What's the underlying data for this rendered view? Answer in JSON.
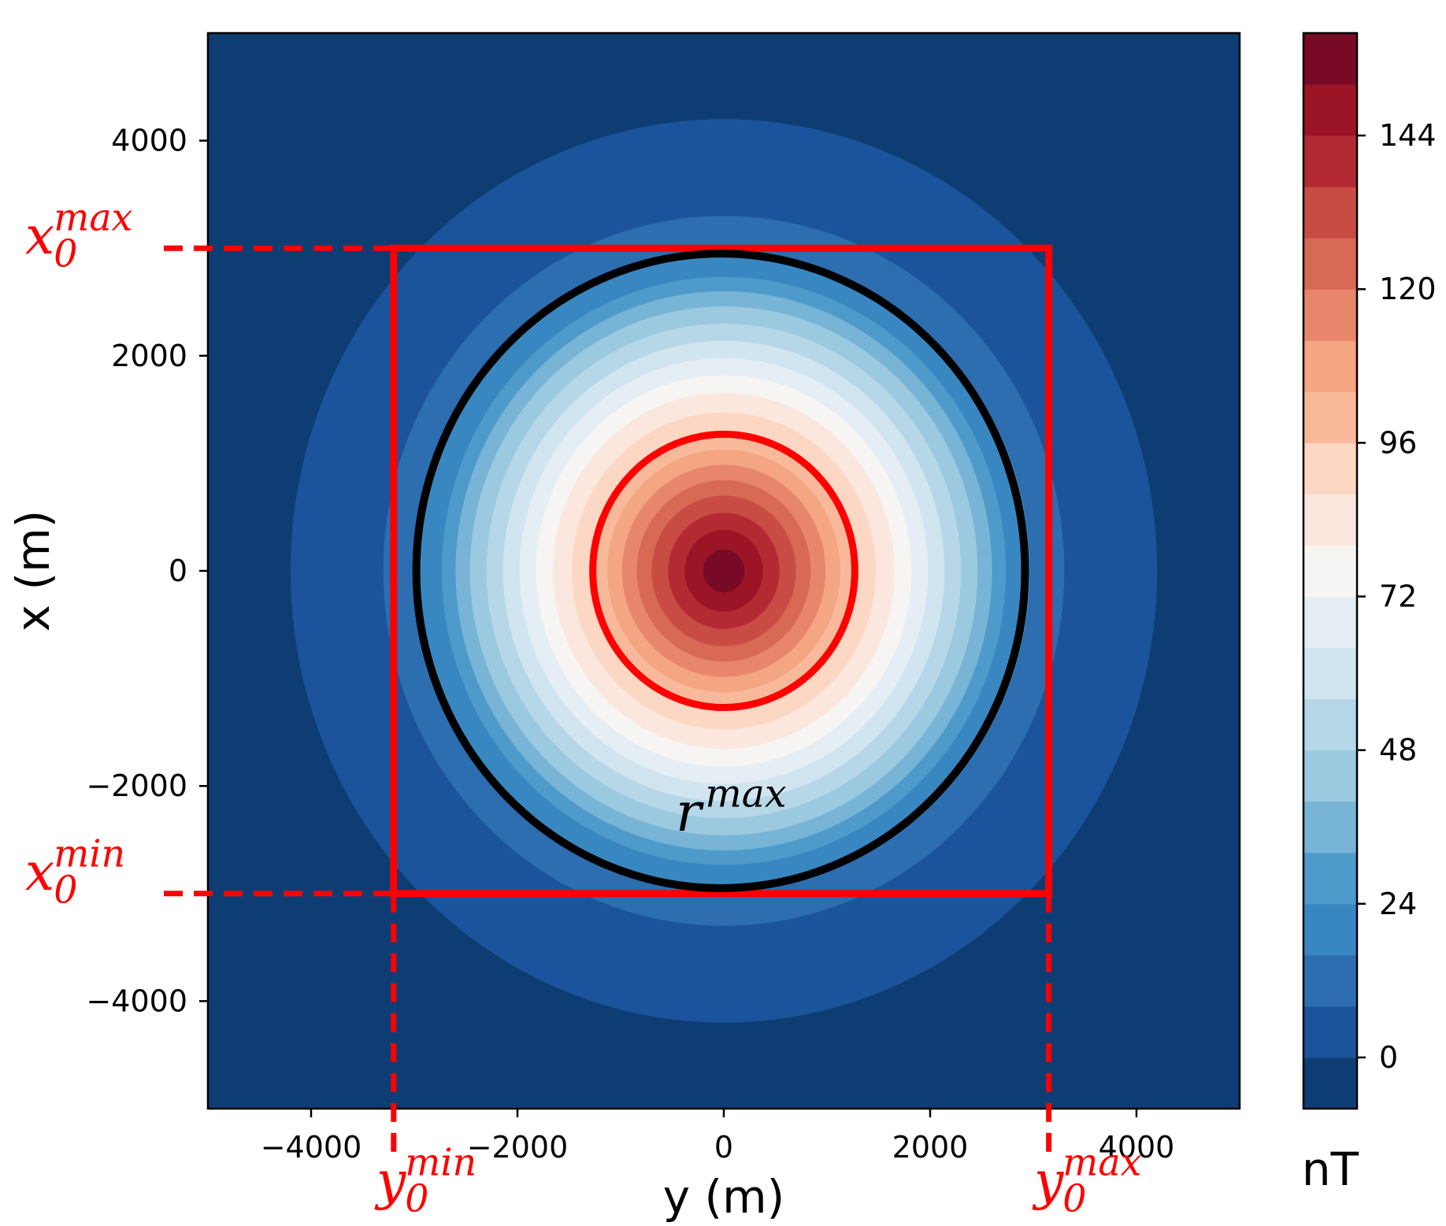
{
  "chart_data": {
    "type": "heatmap",
    "subtype": "filled-contour",
    "title": "",
    "xlabel": "y (m)",
    "ylabel": "x (m)",
    "xlim": [
      -5000,
      5000
    ],
    "ylim": [
      -5000,
      5000
    ],
    "xticks": [
      -4000,
      -2000,
      0,
      2000,
      4000
    ],
    "yticks": [
      -4000,
      -2000,
      0,
      2000,
      4000
    ],
    "xtick_labels": [
      "−4000",
      "−2000",
      "0",
      "2000",
      "4000"
    ],
    "ytick_labels": [
      "−4000",
      "−2000",
      "0",
      "2000",
      "4000"
    ],
    "grid": false,
    "colormap": "RdBu_r",
    "colorbar": {
      "label": "nT",
      "min": -8,
      "max": 160,
      "levels": [
        -8,
        0,
        8,
        16,
        24,
        32,
        40,
        48,
        56,
        64,
        72,
        80,
        88,
        96,
        104,
        112,
        120,
        128,
        136,
        144,
        152,
        160
      ],
      "ticks": [
        0,
        24,
        48,
        72,
        96,
        120,
        144
      ],
      "tick_labels": [
        "0",
        "24",
        "48",
        "72",
        "96",
        "120",
        "144"
      ],
      "colors": [
        "#0e3d73",
        "#1b549c",
        "#2c6eb0",
        "#3987c0",
        "#4e9bcb",
        "#78b4d6",
        "#9ac9e0",
        "#b6d7e8",
        "#d0e5f0",
        "#e4eef4",
        "#f6f5f4",
        "#fbe7dd",
        "#fcd7c3",
        "#f8b99b",
        "#f4a582",
        "#e8866b",
        "#d86955",
        "#c84c44",
        "#b42a33",
        "#9c1527",
        "#790a25"
      ]
    },
    "field": {
      "center": [
        0,
        0
      ],
      "peak_value": 160,
      "values_by_radius_m": [
        [
          0,
          160
        ],
        [
          300,
          148
        ],
        [
          700,
          128
        ],
        [
          1200,
          100
        ],
        [
          1700,
          78
        ],
        [
          2100,
          58
        ],
        [
          2500,
          38
        ],
        [
          2800,
          20
        ],
        [
          3300,
          8
        ],
        [
          4200,
          0
        ],
        [
          5200,
          -8
        ]
      ]
    },
    "annotations": {
      "rectangle": {
        "y0_min": -3200,
        "y0_max": 3150,
        "x0_min": -3000,
        "x0_max": 3000,
        "color": "#ff0000"
      },
      "inner_circle": {
        "center": [
          0,
          0
        ],
        "radius": 1270,
        "color": "#ff0000"
      },
      "outer_circle": {
        "center": [
          -30,
          0
        ],
        "radius": 2950,
        "color": "#000000"
      },
      "labels": {
        "x0_max": {
          "base": "x",
          "sub": "0",
          "sup": "max"
        },
        "x0_min": {
          "base": "x",
          "sub": "0",
          "sup": "min"
        },
        "y0_min": {
          "base": "y",
          "sub": "0",
          "sup": "min"
        },
        "y0_max": {
          "base": "y",
          "sub": "0",
          "sup": "max"
        },
        "r_max": {
          "base": "r",
          "sup": "max"
        }
      }
    }
  }
}
